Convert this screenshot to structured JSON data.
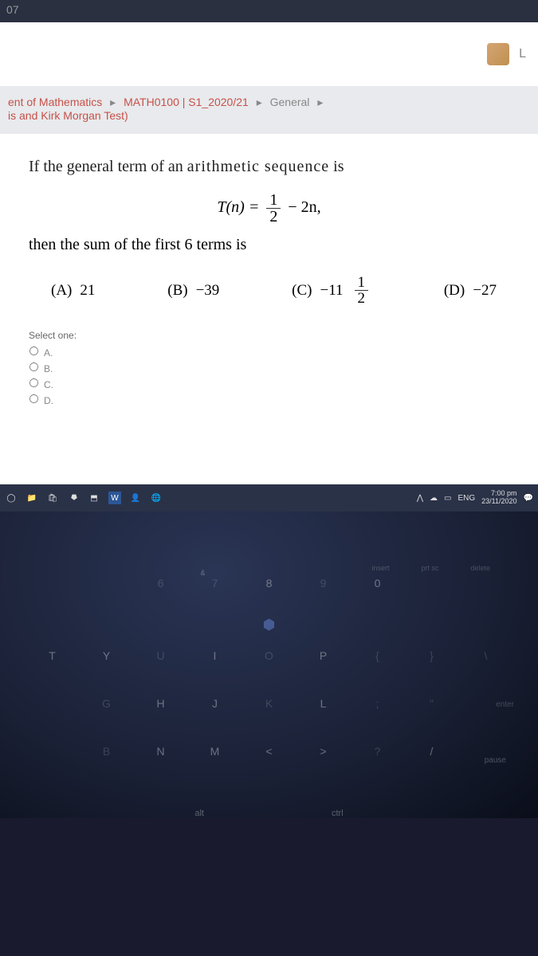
{
  "topbar": {
    "text": "07"
  },
  "titlebar": {
    "letter": "L"
  },
  "breadcrumb": {
    "part1": "ent of Mathematics",
    "part2": "MATH0100 | S1_2020/21",
    "part3": "General",
    "line2": "is and Kirk Morgan Test)"
  },
  "question": {
    "stem_prefix": "If the general term of an ",
    "stem_bold": "arithmetic sequence",
    "stem_suffix": " is",
    "eq_lhs": "T(n) = ",
    "eq_frac_num": "1",
    "eq_frac_den": "2",
    "eq_mid": " − 2n,",
    "stem2": "then the sum of the first 6 terms is",
    "choices": {
      "a_label": "(A)",
      "a_val": "21",
      "b_label": "(B)",
      "b_val": "−39",
      "c_label": "(C)",
      "c_val_prefix": "−11",
      "c_frac_num": "1",
      "c_frac_den": "2",
      "d_label": "(D)",
      "d_val": "−27"
    },
    "select_prompt": "Select one:",
    "options": {
      "a": "A.",
      "b": "B.",
      "c": "C.",
      "d": "D."
    }
  },
  "taskbar": {
    "lang": "ENG",
    "time": "7:00 pm",
    "date": "23/11/2020"
  },
  "keyboard": {
    "fn_labels": {
      "insert": "insert",
      "prtsc": "prt sc",
      "delete": "delete",
      "pause": "pause",
      "alt": "alt",
      "ctrl": "ctrl",
      "enter": "enter"
    },
    "row_nums": [
      "6",
      "7",
      "8",
      "9",
      "0"
    ],
    "row_nums_sup": [
      "",
      "&",
      "",
      "",
      ""
    ],
    "row1": [
      "T",
      "Y",
      "U",
      "I",
      "O",
      "P",
      "{",
      "}",
      "\\"
    ],
    "row2": [
      "G",
      "H",
      "J",
      "K",
      "L",
      ";",
      "\""
    ],
    "row3": [
      "B",
      "N",
      "M",
      "<",
      ">",
      "?",
      "/"
    ]
  }
}
